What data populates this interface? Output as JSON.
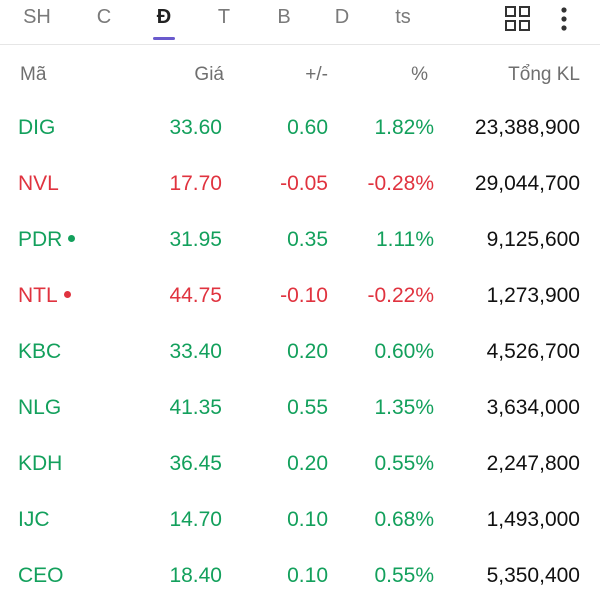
{
  "tabs": [
    {
      "label": "SH",
      "active": false
    },
    {
      "label": "C",
      "active": false
    },
    {
      "label": "Đ",
      "active": true
    },
    {
      "label": "T",
      "active": false
    },
    {
      "label": "B",
      "active": false
    },
    {
      "label": "D",
      "active": false
    },
    {
      "label": "ts",
      "active": false
    }
  ],
  "toolbar": {
    "grid_icon": "grid-icon",
    "more_icon": "more-vertical-icon"
  },
  "columns": {
    "symbol": "Mã",
    "price": "Giá",
    "change": "+/-",
    "percent": "%",
    "volume": "Tổng KL"
  },
  "colors": {
    "up": "#13a05c",
    "down": "#e0333f",
    "accent": "#6a5acd"
  },
  "rows": [
    {
      "symbol": "DIG",
      "price": "33.60",
      "change": "0.60",
      "percent": "1.82%",
      "volume": "23,388,900",
      "trend": "up",
      "dot": false
    },
    {
      "symbol": "NVL",
      "price": "17.70",
      "change": "-0.05",
      "percent": "-0.28%",
      "volume": "29,044,700",
      "trend": "down",
      "dot": false
    },
    {
      "symbol": "PDR",
      "price": "31.95",
      "change": "0.35",
      "percent": "1.11%",
      "volume": "9,125,600",
      "trend": "up",
      "dot": true
    },
    {
      "symbol": "NTL",
      "price": "44.75",
      "change": "-0.10",
      "percent": "-0.22%",
      "volume": "1,273,900",
      "trend": "down",
      "dot": true
    },
    {
      "symbol": "KBC",
      "price": "33.40",
      "change": "0.20",
      "percent": "0.60%",
      "volume": "4,526,700",
      "trend": "up",
      "dot": false
    },
    {
      "symbol": "NLG",
      "price": "41.35",
      "change": "0.55",
      "percent": "1.35%",
      "volume": "3,634,000",
      "trend": "up",
      "dot": false
    },
    {
      "symbol": "KDH",
      "price": "36.45",
      "change": "0.20",
      "percent": "0.55%",
      "volume": "2,247,800",
      "trend": "up",
      "dot": false
    },
    {
      "symbol": "IJC",
      "price": "14.70",
      "change": "0.10",
      "percent": "0.68%",
      "volume": "1,493,000",
      "trend": "up",
      "dot": false
    },
    {
      "symbol": "CEO",
      "price": "18.40",
      "change": "0.10",
      "percent": "0.55%",
      "volume": "5,350,400",
      "trend": "up",
      "dot": false
    }
  ]
}
